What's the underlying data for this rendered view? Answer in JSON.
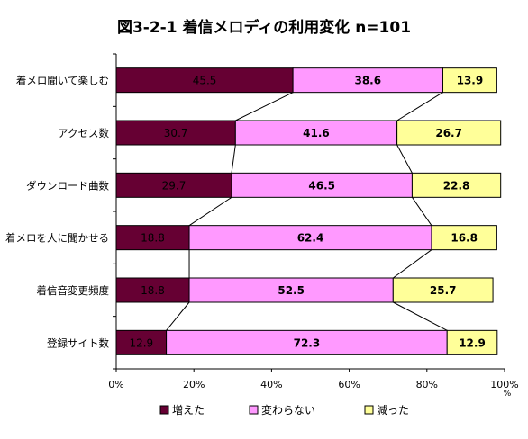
{
  "chart_data": {
    "type": "bar",
    "orientation": "horizontal",
    "stacked": "percent",
    "title": "図3-2-1 着信メロディの利用変化 n=101",
    "categories": [
      "着メロ聞いて楽しむ",
      "アクセス数",
      "ダウンロード曲数",
      "着メロを人に聞かせる",
      "着信音変更頻度",
      "登録サイト数"
    ],
    "series": [
      {
        "name": "増えた",
        "color": "#660033",
        "values": [
          45.5,
          30.7,
          29.7,
          18.8,
          18.8,
          12.9
        ]
      },
      {
        "name": "変わらない",
        "color": "#ff99ff",
        "values": [
          38.6,
          41.6,
          46.5,
          62.4,
          52.5,
          72.3
        ]
      },
      {
        "name": "減った",
        "color": "#ffff99",
        "values": [
          13.9,
          26.7,
          22.8,
          16.8,
          25.7,
          12.9
        ]
      }
    ],
    "xlim": [
      0,
      100
    ],
    "x_ticks": [
      "0%",
      "20%",
      "40%",
      "60%",
      "80%",
      "100%"
    ],
    "x_unit": "%",
    "data_labels": true,
    "series_lines": true,
    "grid": false,
    "legend_position": "bottom"
  }
}
